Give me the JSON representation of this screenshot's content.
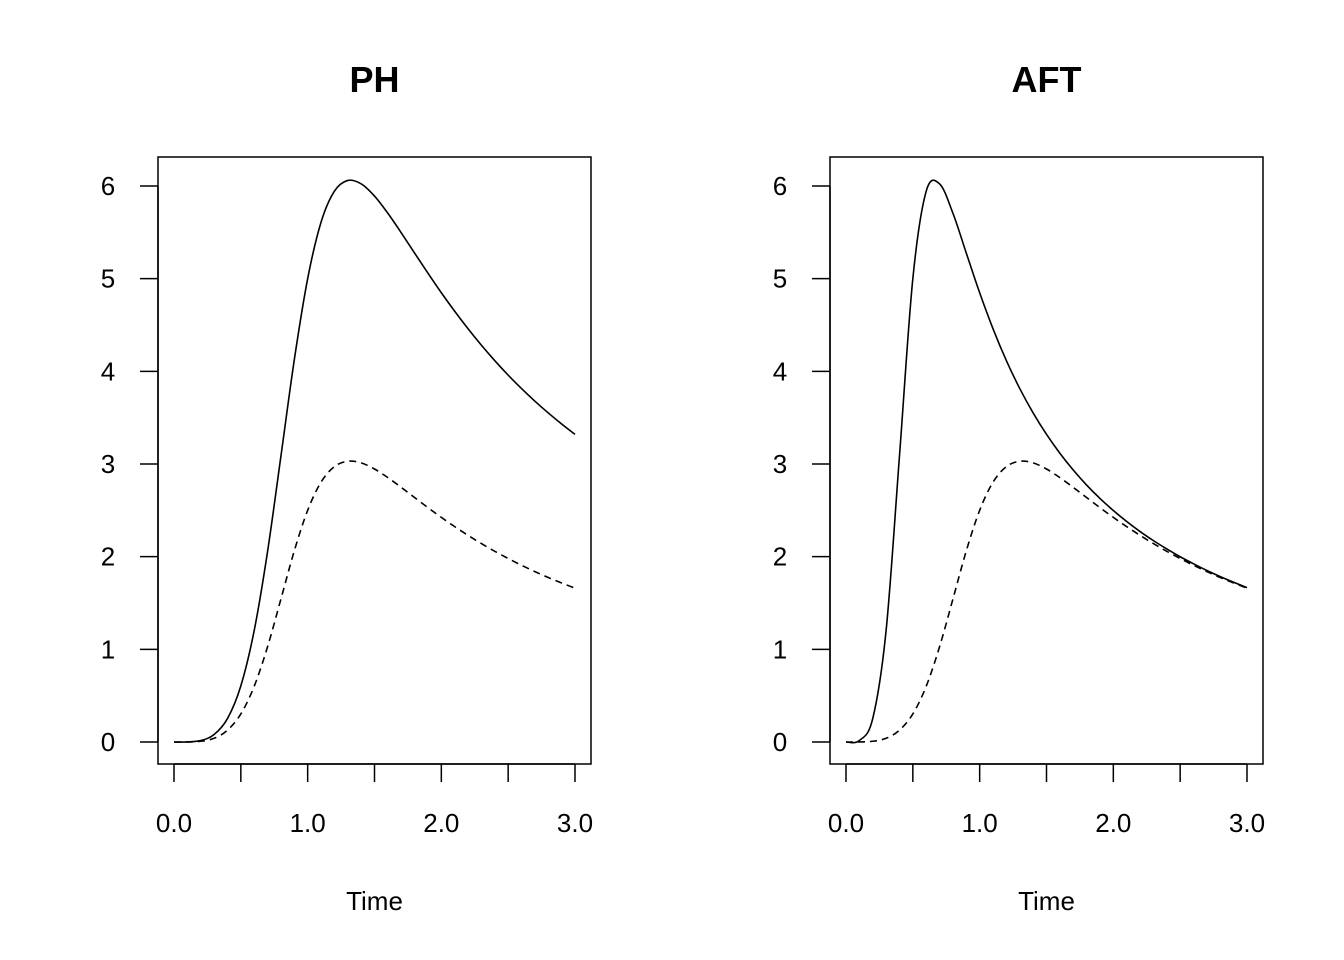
{
  "chart_data": [
    {
      "type": "line",
      "title": "PH",
      "xlabel": "Time",
      "ylabel": "",
      "xlim": [
        0,
        3
      ],
      "ylim": [
        0,
        6
      ],
      "xticks": [
        0,
        0.5,
        1,
        1.5,
        2,
        2.5,
        3
      ],
      "xtick_labels": [
        "0.0",
        "",
        "1.0",
        "",
        "2.0",
        "",
        "3.0"
      ],
      "yticks": [
        0,
        1,
        2,
        3,
        4,
        5,
        6
      ],
      "ytick_labels": [
        "0",
        "1",
        "2",
        "3",
        "4",
        "5",
        "6"
      ],
      "grid": false,
      "x": [
        0,
        0.1,
        0.2,
        0.3,
        0.4,
        0.5,
        0.6,
        0.7,
        0.8,
        0.9,
        1.0,
        1.1,
        1.2,
        1.3,
        1.4,
        1.5,
        1.6,
        1.7,
        1.8,
        1.9,
        2.0,
        2.1,
        2.2,
        2.3,
        2.4,
        2.5,
        2.6,
        2.7,
        2.8,
        2.9,
        3.0
      ],
      "series": [
        {
          "style": "solid",
          "values": [
            0,
            0.001,
            0.016,
            0.081,
            0.253,
            0.606,
            1.203,
            2.056,
            3.085,
            4.125,
            5.0,
            5.609,
            5.944,
            6.06,
            6.023,
            5.891,
            5.706,
            5.495,
            5.276,
            5.059,
            4.848,
            4.648,
            4.459,
            4.281,
            4.115,
            3.959,
            3.814,
            3.678,
            3.551,
            3.432,
            3.32
          ]
        },
        {
          "style": "dashed",
          "values": [
            0,
            0.0005,
            0.008,
            0.04,
            0.127,
            0.303,
            0.601,
            1.028,
            1.543,
            2.063,
            2.5,
            2.804,
            2.972,
            3.03,
            3.012,
            2.946,
            2.853,
            2.748,
            2.638,
            2.529,
            2.424,
            2.324,
            2.23,
            2.141,
            2.058,
            1.98,
            1.907,
            1.839,
            1.775,
            1.716,
            1.66
          ]
        }
      ]
    },
    {
      "type": "line",
      "title": "AFT",
      "xlabel": "Time",
      "ylabel": "",
      "xlim": [
        0,
        3
      ],
      "ylim": [
        0,
        6
      ],
      "xticks": [
        0,
        0.5,
        1,
        1.5,
        2,
        2.5,
        3
      ],
      "xtick_labels": [
        "0.0",
        "",
        "1.0",
        "",
        "2.0",
        "",
        "3.0"
      ],
      "yticks": [
        0,
        1,
        2,
        3,
        4,
        5,
        6
      ],
      "ytick_labels": [
        "0",
        "1",
        "2",
        "3",
        "4",
        "5",
        "6"
      ],
      "grid": false,
      "x": [
        0,
        0.1,
        0.2,
        0.3,
        0.4,
        0.5,
        0.6,
        0.7,
        0.8,
        0.9,
        1.0,
        1.1,
        1.2,
        1.3,
        1.4,
        1.5,
        1.6,
        1.7,
        1.8,
        1.9,
        2.0,
        2.1,
        2.2,
        2.3,
        2.4,
        2.5,
        2.6,
        2.7,
        2.8,
        2.9,
        3.0
      ],
      "series": [
        {
          "style": "solid",
          "values": [
            0,
            0.016,
            0.253,
            1.203,
            3.085,
            5.0,
            5.944,
            6.023,
            5.706,
            5.276,
            4.848,
            4.459,
            4.115,
            3.814,
            3.551,
            3.32,
            3.116,
            2.935,
            2.773,
            2.628,
            2.498,
            2.379,
            2.271,
            2.173,
            2.083,
            1.999,
            1.923,
            1.851,
            1.785,
            1.724,
            1.666
          ]
        },
        {
          "style": "dashed",
          "values": [
            0,
            0.0005,
            0.008,
            0.04,
            0.127,
            0.303,
            0.601,
            1.028,
            1.543,
            2.063,
            2.5,
            2.804,
            2.972,
            3.03,
            3.012,
            2.946,
            2.853,
            2.748,
            2.638,
            2.529,
            2.424,
            2.324,
            2.23,
            2.141,
            2.058,
            1.98,
            1.907,
            1.839,
            1.775,
            1.716,
            1.66
          ]
        }
      ]
    }
  ]
}
